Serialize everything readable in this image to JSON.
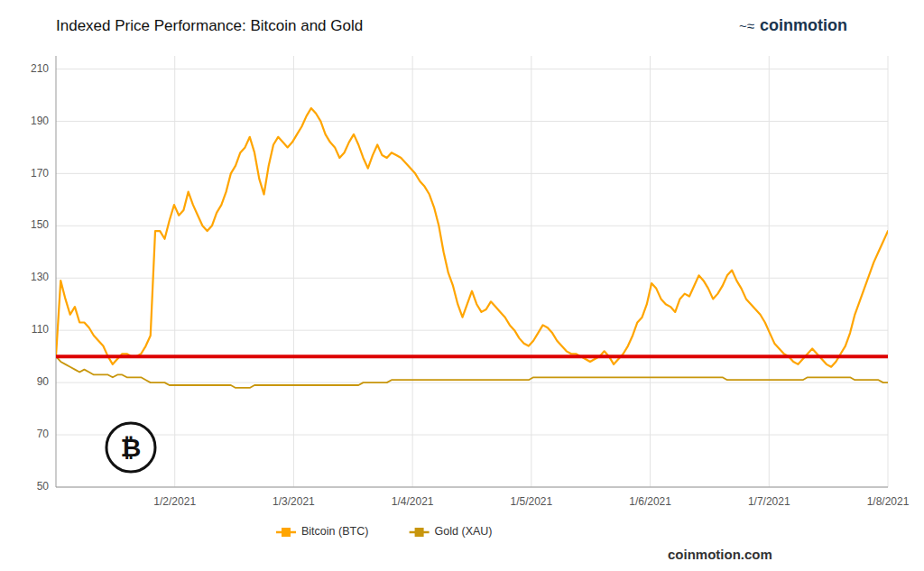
{
  "chart_data": {
    "type": "line",
    "title": "Indexed Price Performance: Bitcoin and Gold",
    "xlim": [
      0,
      7
    ],
    "xticks": [
      {
        "value": 1,
        "label": "1/2/2021"
      },
      {
        "value": 2,
        "label": "1/3/2021"
      },
      {
        "value": 3,
        "label": "1/4/2021"
      },
      {
        "value": 4,
        "label": "1/5/2021"
      },
      {
        "value": 5,
        "label": "1/6/2021"
      },
      {
        "value": 6,
        "label": "1/7/2021"
      },
      {
        "value": 7,
        "label": "1/8/2021"
      }
    ],
    "ylim": [
      50,
      215
    ],
    "yticks": [
      50,
      70,
      90,
      110,
      130,
      150,
      170,
      190,
      210
    ],
    "grid": true,
    "legend": "bottom",
    "reference_line": {
      "value": 100,
      "color": "#DD0000"
    },
    "annotations": [
      "coinmotion.com",
      "~≈",
      "coinmotion",
      "₿"
    ],
    "series": [
      {
        "name": "Bitcoin (BTC)",
        "color": "#FFA500",
        "values": [
          100,
          129,
          122,
          116,
          119,
          113,
          113,
          111,
          108,
          106,
          104,
          100,
          97,
          99,
          101,
          101,
          100,
          100,
          101,
          104,
          108,
          148,
          148,
          145,
          152,
          158,
          154,
          156,
          163,
          158,
          154,
          150,
          148,
          150,
          155,
          158,
          163,
          170,
          173,
          178,
          180,
          184,
          178,
          168,
          162,
          173,
          181,
          184,
          182,
          180,
          182,
          185,
          188,
          192,
          195,
          193,
          190,
          185,
          182,
          180,
          176,
          178,
          182,
          185,
          181,
          176,
          172,
          177,
          181,
          177,
          176,
          178,
          177,
          176,
          174,
          172,
          170,
          167,
          165,
          162,
          157,
          150,
          140,
          132,
          127,
          120,
          115,
          120,
          125,
          120,
          117,
          118,
          121,
          119,
          117,
          115,
          112,
          110,
          107,
          105,
          104,
          106,
          109,
          112,
          111,
          109,
          106,
          104,
          102,
          101,
          101,
          100,
          99,
          98,
          99,
          100,
          102,
          100,
          97,
          99,
          101,
          104,
          108,
          113,
          115,
          120,
          128,
          126,
          122,
          120,
          119,
          117,
          122,
          124,
          123,
          127,
          131,
          129,
          126,
          122,
          124,
          127,
          131,
          133,
          129,
          126,
          122,
          120,
          118,
          116,
          113,
          109,
          105,
          103,
          101,
          100,
          98,
          97,
          99,
          101,
          103,
          101,
          99,
          97,
          96,
          98,
          101,
          104,
          109,
          116,
          121,
          126,
          131,
          136,
          140,
          144,
          148
        ]
      },
      {
        "name": "Gold (XAU)",
        "color": "#C8960C",
        "values": [
          100,
          98,
          97,
          96,
          95,
          94,
          95,
          94,
          93,
          93,
          93,
          93,
          92,
          93,
          93,
          92,
          92,
          92,
          92,
          91,
          90,
          90,
          90,
          90,
          89,
          89,
          89,
          89,
          89,
          89,
          89,
          89,
          89,
          89,
          89,
          89,
          89,
          89,
          88,
          88,
          88,
          88,
          89,
          89,
          89,
          89,
          89,
          89,
          89,
          89,
          89,
          89,
          89,
          89,
          89,
          89,
          89,
          89,
          89,
          89,
          89,
          89,
          89,
          89,
          89,
          90,
          90,
          90,
          90,
          90,
          90,
          91,
          91,
          91,
          91,
          91,
          91,
          91,
          91,
          91,
          91,
          91,
          91,
          91,
          91,
          91,
          91,
          91,
          91,
          91,
          91,
          91,
          91,
          91,
          91,
          91,
          91,
          91,
          91,
          91,
          91,
          92,
          92,
          92,
          92,
          92,
          92,
          92,
          92,
          92,
          92,
          92,
          92,
          92,
          92,
          92,
          92,
          92,
          92,
          92,
          92,
          92,
          92,
          92,
          92,
          92,
          92,
          92,
          92,
          92,
          92,
          92,
          92,
          92,
          92,
          92,
          92,
          92,
          92,
          92,
          92,
          92,
          91,
          91,
          91,
          91,
          91,
          91,
          91,
          91,
          91,
          91,
          91,
          91,
          91,
          91,
          91,
          91,
          91,
          92,
          92,
          92,
          92,
          92,
          92,
          92,
          92,
          92,
          92,
          91,
          91,
          91,
          91,
          91,
          91,
          90,
          90
        ]
      }
    ]
  }
}
